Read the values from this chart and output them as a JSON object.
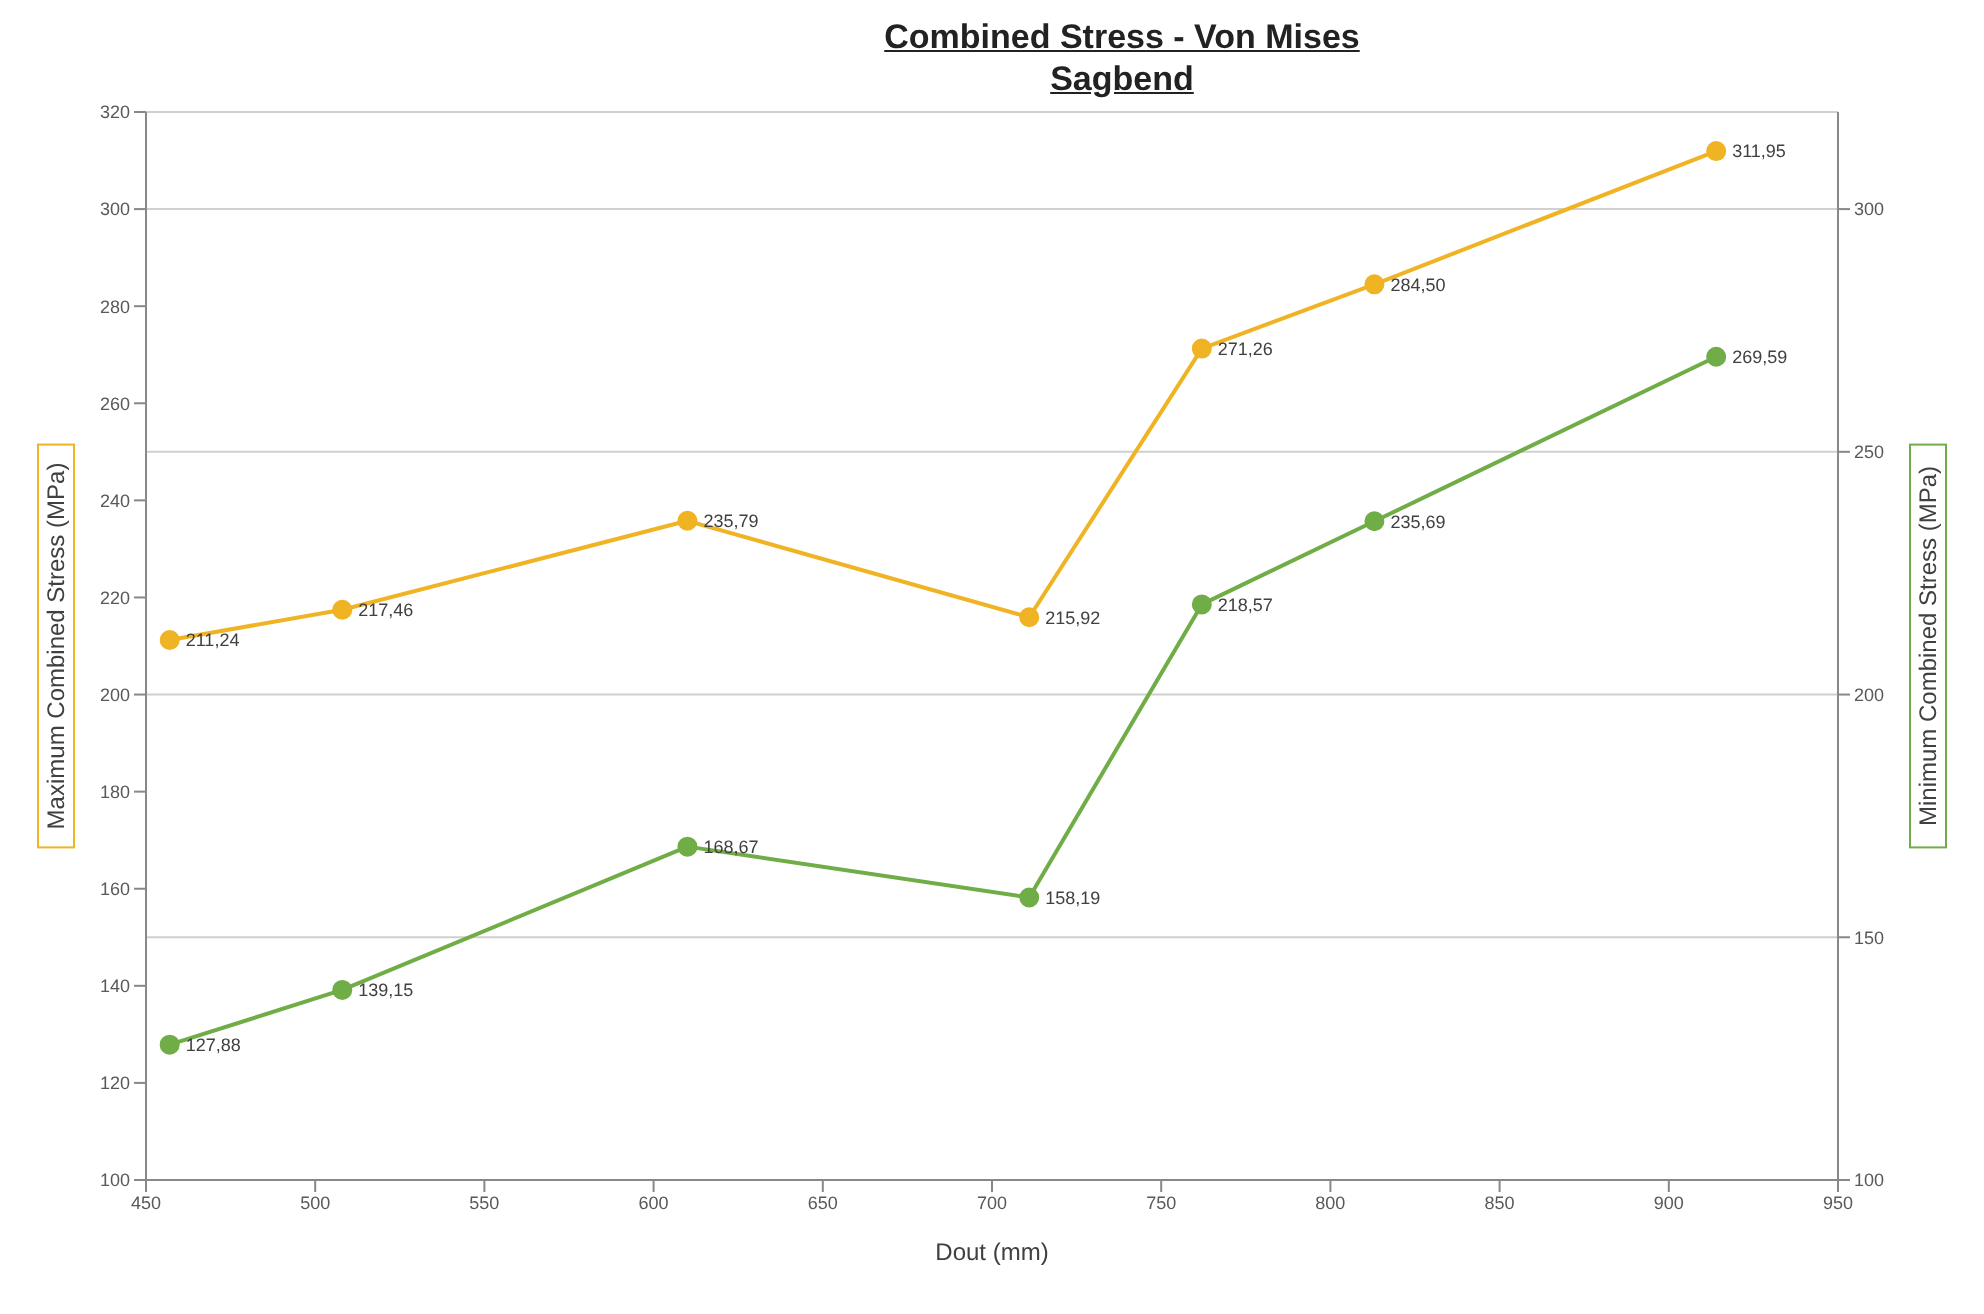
{
  "chart_data": {
    "type": "line",
    "title": "Combined Stress - Von Mises",
    "subtitle": "Sagbend",
    "xlabel": "Dout (mm)",
    "ylabel": "Maximum Combined Stress (MPa)",
    "y2label": "Minimum Combined Stress (MPa)",
    "x": [
      457,
      508,
      610,
      711,
      762,
      813,
      914
    ],
    "series": [
      {
        "color": "#f0b323",
        "values": [
          211.24,
          217.46,
          235.79,
          215.92,
          271.26,
          284.5,
          311.95
        ],
        "value_labels": [
          "211,24",
          "217,46",
          "235,79",
          "215,92",
          "271,26",
          "284,50",
          "311,95"
        ]
      },
      {
        "color": "#70ad47",
        "axis": "y2",
        "values": [
          127.88,
          139.15,
          168.67,
          158.19,
          218.57,
          235.69,
          269.59
        ],
        "value_labels": [
          "127,88",
          "139,15",
          "168,67",
          "158,19",
          "218,57",
          "235,69",
          "269,59"
        ]
      }
    ],
    "xlim": [
      450,
      950
    ],
    "xticks": [
      450,
      500,
      550,
      600,
      650,
      700,
      750,
      800,
      850,
      900,
      950
    ],
    "ylim": [
      100,
      320
    ],
    "yticks": [
      100,
      120,
      140,
      160,
      180,
      200,
      220,
      240,
      260,
      280,
      300,
      320
    ],
    "y2lim": [
      100,
      320
    ],
    "y2ticks": [
      100,
      150,
      200,
      250,
      300
    ],
    "grid": "y2",
    "marker": "circle",
    "line_style": "solid"
  }
}
